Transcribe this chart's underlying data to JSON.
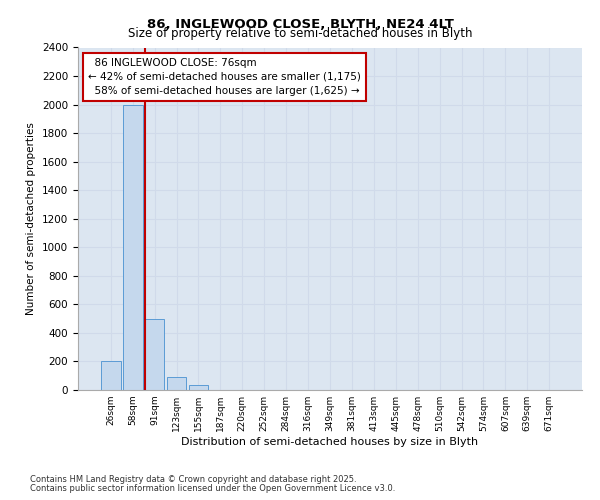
{
  "title1": "86, INGLEWOOD CLOSE, BLYTH, NE24 4LT",
  "title2": "Size of property relative to semi-detached houses in Blyth",
  "xlabel": "Distribution of semi-detached houses by size in Blyth",
  "ylabel": "Number of semi-detached properties",
  "categories": [
    "26sqm",
    "58sqm",
    "91sqm",
    "123sqm",
    "155sqm",
    "187sqm",
    "220sqm",
    "252sqm",
    "284sqm",
    "316sqm",
    "349sqm",
    "381sqm",
    "413sqm",
    "445sqm",
    "478sqm",
    "510sqm",
    "542sqm",
    "574sqm",
    "607sqm",
    "639sqm",
    "671sqm"
  ],
  "values": [
    200,
    2000,
    500,
    90,
    35,
    0,
    0,
    0,
    0,
    0,
    0,
    0,
    0,
    0,
    0,
    0,
    0,
    0,
    0,
    0,
    0
  ],
  "bar_color": "#c5d8ed",
  "bar_edge_color": "#5b9bd5",
  "grid_color": "#d0daea",
  "bg_color": "#dce6f1",
  "property_label": "86 INGLEWOOD CLOSE: 76sqm",
  "pct_smaller": 42,
  "n_smaller": 1175,
  "pct_larger": 58,
  "n_larger": 1625,
  "vline_color": "#c00000",
  "annotation_box_color": "#c00000",
  "ylim": [
    0,
    2400
  ],
  "yticks": [
    0,
    200,
    400,
    600,
    800,
    1000,
    1200,
    1400,
    1600,
    1800,
    2000,
    2200,
    2400
  ],
  "footnote1": "Contains HM Land Registry data © Crown copyright and database right 2025.",
  "footnote2": "Contains public sector information licensed under the Open Government Licence v3.0.",
  "vline_position": 1.545
}
